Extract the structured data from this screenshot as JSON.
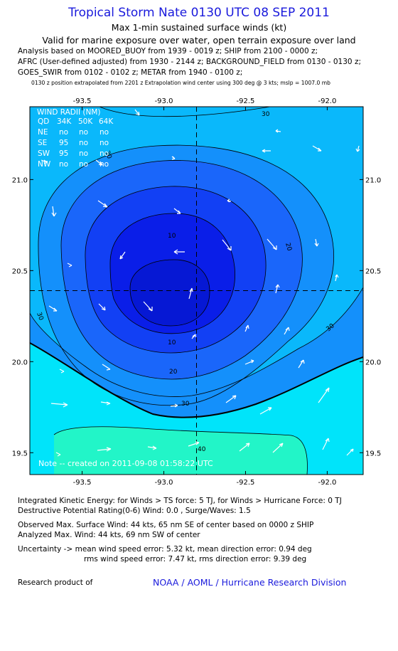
{
  "header": {
    "title": "Tropical Storm Nate 0130 UTC 08 SEP 2011",
    "subtitle1": "Max 1-min sustained surface winds (kt)",
    "subtitle2": "Valid for marine exposure over water, open terrain exposure over land",
    "analysis_lines": [
      "Analysis based on MOORED_BUOY from 1939 - 0019 z; SHIP from 2100 - 0000 z;",
      "AFRC (User-defined adjusted) from 1930 - 2144 z; BACKGROUND_FIELD from 0130 - 0130 z;",
      "GOES_SWIR from 0102 - 0102 z; METAR from 1940 - 0100 z;"
    ],
    "position_note": "0130 z position extrapolated from 2201 z Extrapolation wind center using 300 deg @ 3 kts; mslp = 1007.0 mb"
  },
  "map": {
    "lon_range": [
      -93.82,
      -91.78
    ],
    "lat_range": [
      19.38,
      21.4
    ],
    "lon_ticks": [
      "-93.5",
      "-93.0",
      "-92.5",
      "-92.0"
    ],
    "lat_ticks": [
      "21.0",
      "20.5",
      "20.0",
      "19.5"
    ],
    "center": {
      "lon": -92.8,
      "lat": 20.39
    },
    "contour_labels": [
      "10",
      "10",
      "20",
      "20",
      "30",
      "30",
      "30",
      "30",
      "30",
      "40"
    ],
    "colors": {
      "band_10": "#0a1ee8",
      "band_20": "#1240f4",
      "band_30": "#1a66fa",
      "band_40": "#1490fb",
      "band_50": "#0ab8fb",
      "band_60": "#00e4fa",
      "band_70": "#22f5c8",
      "arrow": "#ffffff",
      "line": "#000000"
    },
    "wind_radii": {
      "header": [
        "QD",
        "34K",
        "50K",
        "64K"
      ],
      "title": "WIND RADII (NM)",
      "rows": [
        [
          "NE",
          "no",
          "no",
          "no"
        ],
        [
          "SE",
          "95",
          "no",
          "no"
        ],
        [
          "SW",
          "95",
          "no",
          "no"
        ],
        [
          "NW",
          "no",
          "no",
          "no"
        ]
      ]
    },
    "note": "Note -- created on 2011-09-08 01:58:22 UTC"
  },
  "footer": {
    "ike": "Integrated Kinetic Energy:  for Winds > TS force: 5 TJ,  for Winds > Hurricane Force: 0 TJ",
    "dpr": "Destructive Potential Rating(0-6)   Wind: 0.0 , Surge/Waves: 1.5",
    "observed": "Observed Max. Surface Wind: 44 kts, 65 nm SE of center based on 0000 z SHIP",
    "analyzed": "Analyzed Max. Wind: 44 kts, 69 nm SW of center",
    "uncertainty1": "Uncertainty -> mean wind speed error: 5.32 kt,   mean direction error: 0.94 deg",
    "uncertainty2": "rms wind speed error: 7.47 kt,   rms direction error: 9.39 deg",
    "research": "Research product of",
    "credit": "NOAA / AOML / Hurricane Research Division"
  }
}
